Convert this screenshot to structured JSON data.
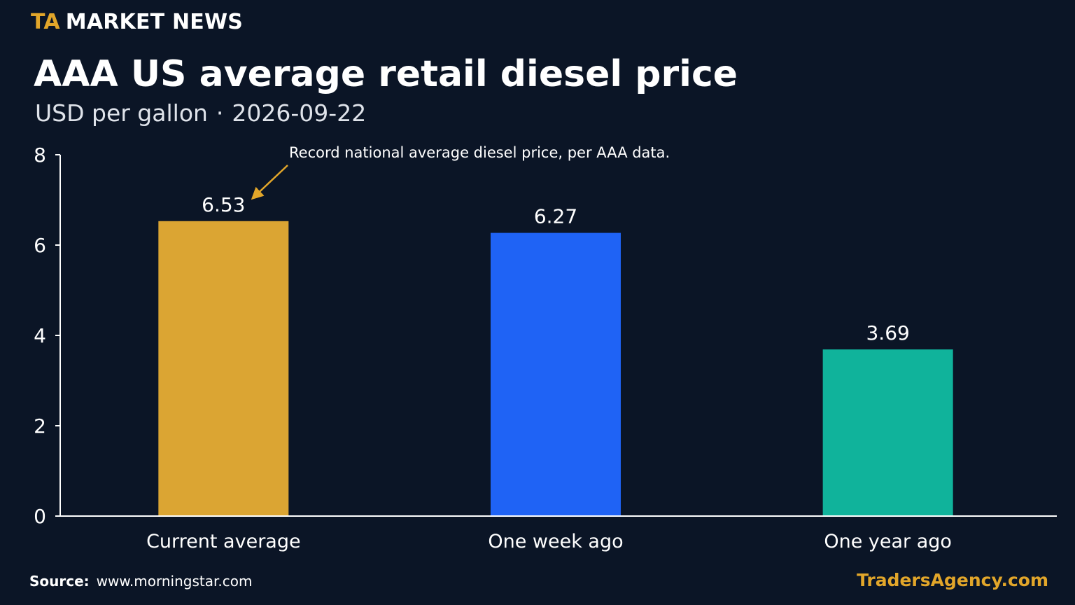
{
  "header": {
    "brand_mark": "TA",
    "brand_text": "MARKET NEWS",
    "title": "AAA US average retail diesel price",
    "subtitle_unit": "USD per gallon",
    "subtitle_sep": "·",
    "subtitle_date": "2026-09-22"
  },
  "footer": {
    "source_label": "Source:",
    "source_value": "www.morningstar.com",
    "brand": "TradersAgency.com"
  },
  "colors": {
    "background": "#0b1526",
    "accent": "#e2a62a",
    "axis": "#ffffff"
  },
  "chart_data": {
    "type": "bar",
    "title": "AAA US average retail diesel price",
    "xlabel": "",
    "ylabel": "",
    "ylim": [
      0,
      8
    ],
    "yticks": [
      0,
      2,
      4,
      6,
      8
    ],
    "grid": false,
    "categories": [
      "Current average",
      "One week ago",
      "One year ago"
    ],
    "values": [
      6.53,
      6.27,
      3.69
    ],
    "value_labels": [
      "6.53",
      "6.27",
      "3.69"
    ],
    "bar_colors": [
      "#dba533",
      "#1f63f5",
      "#10b39b"
    ],
    "annotation": {
      "text": "Record national average diesel price, per AAA data.",
      "target_index": 0
    }
  }
}
